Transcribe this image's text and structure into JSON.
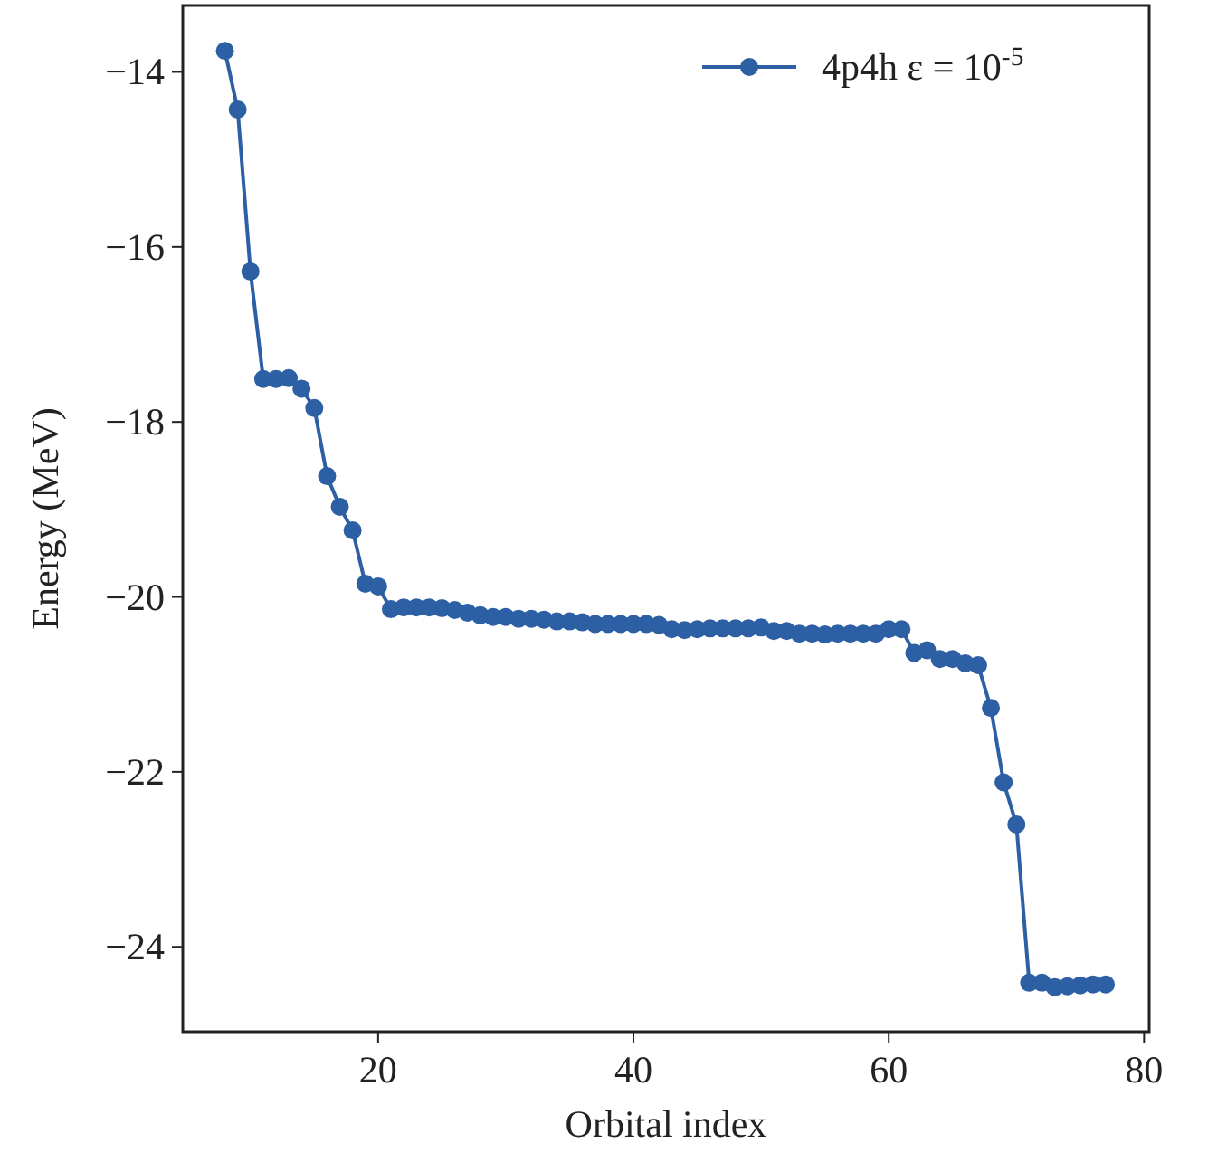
{
  "chart_data": {
    "type": "line",
    "xlabel": "Orbital index",
    "ylabel": "Energy (MeV)",
    "x": [
      8,
      9,
      10,
      11,
      12,
      13,
      14,
      15,
      16,
      17,
      18,
      19,
      20,
      21,
      22,
      23,
      24,
      25,
      26,
      27,
      28,
      29,
      30,
      31,
      32,
      33,
      34,
      35,
      36,
      37,
      38,
      39,
      40,
      41,
      42,
      43,
      44,
      45,
      46,
      47,
      48,
      49,
      50,
      51,
      52,
      53,
      54,
      55,
      56,
      57,
      58,
      59,
      60,
      61,
      62,
      63,
      64,
      65,
      66,
      67,
      68,
      69,
      70,
      71,
      72,
      73,
      74,
      75,
      76,
      77
    ],
    "series": [
      {
        "name": "4p4h ε = 10$^{-5}$",
        "color": "#2c5fa3",
        "values": [
          -13.76,
          -14.43,
          -16.28,
          -17.51,
          -17.51,
          -17.5,
          -17.62,
          -17.84,
          -18.62,
          -18.97,
          -19.24,
          -19.85,
          -19.88,
          -20.14,
          -20.12,
          -20.12,
          -20.12,
          -20.13,
          -20.15,
          -20.18,
          -20.21,
          -20.23,
          -20.23,
          -20.25,
          -20.25,
          -20.26,
          -20.28,
          -20.28,
          -20.29,
          -20.31,
          -20.31,
          -20.31,
          -20.31,
          -20.31,
          -20.32,
          -20.37,
          -20.38,
          -20.37,
          -20.36,
          -20.36,
          -20.36,
          -20.36,
          -20.35,
          -20.39,
          -20.39,
          -20.42,
          -20.42,
          -20.43,
          -20.42,
          -20.42,
          -20.42,
          -20.42,
          -20.37,
          -20.37,
          -20.64,
          -20.61,
          -20.71,
          -20.71,
          -20.76,
          -20.78,
          -21.27,
          -22.12,
          -22.6,
          -24.41,
          -24.41,
          -24.46,
          -24.45,
          -24.44,
          -24.43,
          -24.43
        ]
      }
    ],
    "xlim": [
      4.7,
      80.4
    ],
    "ylim": [
      -24.97,
      -13.24
    ],
    "xticks": [
      20,
      40,
      60,
      80
    ],
    "yticks": [
      {
        "value": -14,
        "label": "−14"
      },
      {
        "value": -16,
        "label": "−16"
      },
      {
        "value": -18,
        "label": "−18"
      },
      {
        "value": -20,
        "label": "−20"
      },
      {
        "value": -22,
        "label": "−22"
      },
      {
        "value": -24,
        "label": "−24"
      }
    ],
    "marker": "circle",
    "line_style": "solid",
    "legend": "top right",
    "grid": false
  }
}
